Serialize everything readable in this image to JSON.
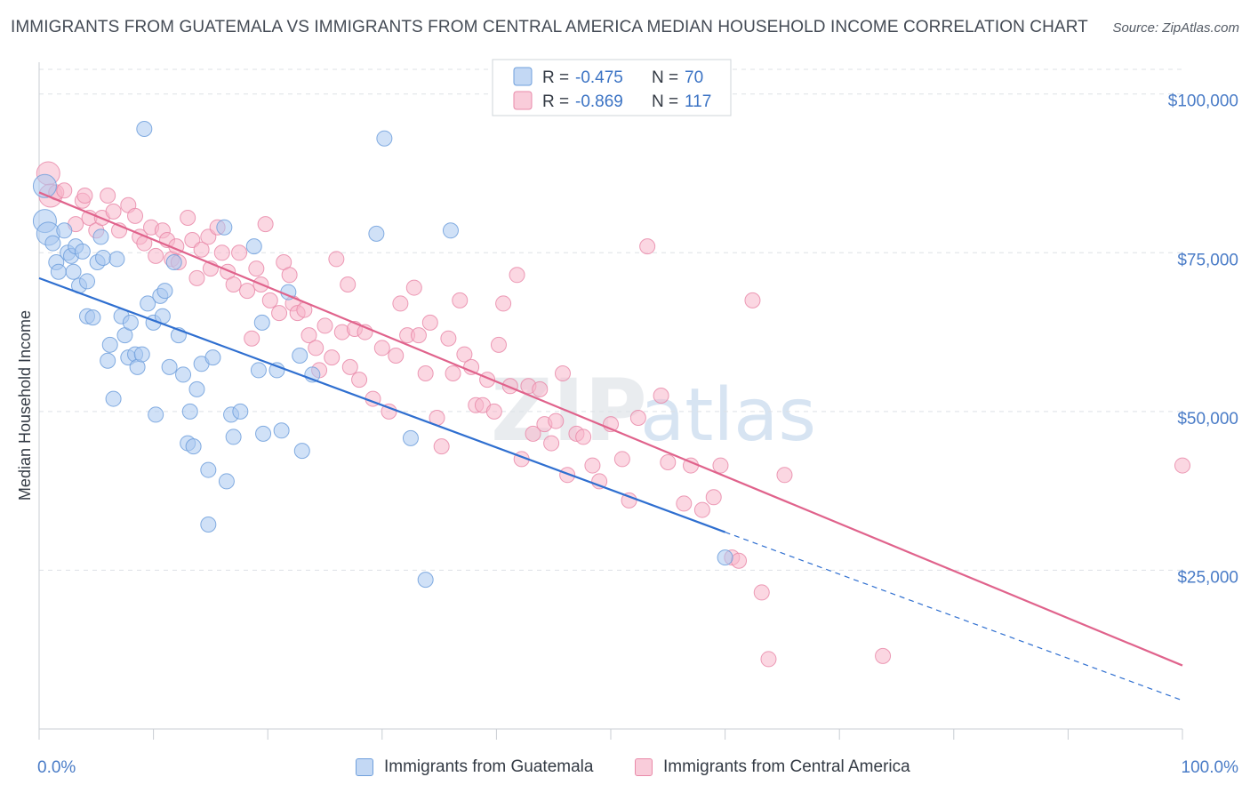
{
  "title": "IMMIGRANTS FROM GUATEMALA VS IMMIGRANTS FROM CENTRAL AMERICA MEDIAN HOUSEHOLD INCOME CORRELATION CHART",
  "source": "Source: ZipAtlas.com",
  "watermark": {
    "zip": "ZIP",
    "atlas": "atlas"
  },
  "legend": {
    "r_label": "R =",
    "n_label": "N =",
    "items": [
      {
        "r": "-0.475",
        "n": "70"
      },
      {
        "r": "-0.869",
        "n": "117"
      }
    ]
  },
  "colors": {
    "blue_fill": "#a9c8f0",
    "blue_stroke": "#6f9fdc",
    "blue_line": "#2f6fd0",
    "pink_fill": "#f7b6cb",
    "pink_stroke": "#e98aa9",
    "pink_line": "#e0638c"
  },
  "chart_data": {
    "type": "scatter",
    "xlabel": "",
    "ylabel": "Median Household Income",
    "xlim": [
      0,
      100
    ],
    "ylim": [
      0,
      105000
    ],
    "x_tick_labels": [
      "0.0%",
      "100.0%"
    ],
    "y_ticks": [
      25000,
      50000,
      75000,
      100000
    ],
    "y_tick_labels": [
      "$25,000",
      "$50,000",
      "$75,000",
      "$100,000"
    ],
    "grid": true,
    "legend_position": "top-center",
    "series": [
      {
        "name": "Immigrants from Guatemala",
        "trend": {
          "x0": 0,
          "y0": 71000,
          "x1": 60,
          "y1": 31000,
          "dash_to_x": 100,
          "dash_to_y": 4500
        },
        "points": [
          [
            0.5,
            85500
          ],
          [
            0.5,
            80000
          ],
          [
            0.8,
            78000
          ],
          [
            1.2,
            76500
          ],
          [
            1.5,
            73500
          ],
          [
            1.7,
            72000
          ],
          [
            2.2,
            78500
          ],
          [
            2.5,
            75000
          ],
          [
            2.8,
            74500
          ],
          [
            3.0,
            72000
          ],
          [
            3.2,
            76000
          ],
          [
            3.5,
            69800
          ],
          [
            3.8,
            75200
          ],
          [
            4.2,
            70500
          ],
          [
            4.2,
            65000
          ],
          [
            4.7,
            64800
          ],
          [
            5.1,
            73500
          ],
          [
            5.4,
            77500
          ],
          [
            5.6,
            74200
          ],
          [
            6.0,
            58000
          ],
          [
            6.2,
            60500
          ],
          [
            6.5,
            52000
          ],
          [
            6.8,
            74000
          ],
          [
            7.2,
            65000
          ],
          [
            7.5,
            62000
          ],
          [
            7.8,
            58500
          ],
          [
            8.0,
            64000
          ],
          [
            8.4,
            59000
          ],
          [
            8.6,
            57000
          ],
          [
            9.0,
            59000
          ],
          [
            9.2,
            94500
          ],
          [
            9.5,
            67000
          ],
          [
            10.0,
            64000
          ],
          [
            10.2,
            49500
          ],
          [
            10.6,
            68200
          ],
          [
            10.8,
            65000
          ],
          [
            11.0,
            69000
          ],
          [
            11.4,
            57000
          ],
          [
            11.8,
            73500
          ],
          [
            12.2,
            62000
          ],
          [
            12.6,
            55800
          ],
          [
            13.0,
            45000
          ],
          [
            13.2,
            50000
          ],
          [
            13.5,
            44500
          ],
          [
            13.8,
            53500
          ],
          [
            14.2,
            57500
          ],
          [
            14.8,
            40800
          ],
          [
            15.2,
            58500
          ],
          [
            16.2,
            79000
          ],
          [
            16.4,
            39000
          ],
          [
            16.8,
            49500
          ],
          [
            17.0,
            46000
          ],
          [
            17.6,
            50000
          ],
          [
            18.8,
            76000
          ],
          [
            19.2,
            56500
          ],
          [
            19.5,
            64000
          ],
          [
            19.6,
            46500
          ],
          [
            20.8,
            56500
          ],
          [
            21.2,
            47000
          ],
          [
            21.8,
            68800
          ],
          [
            22.8,
            58800
          ],
          [
            23.0,
            43800
          ],
          [
            23.9,
            55800
          ],
          [
            14.8,
            32200
          ],
          [
            29.5,
            78000
          ],
          [
            30.2,
            93000
          ],
          [
            32.5,
            45800
          ],
          [
            33.8,
            23500
          ],
          [
            36.0,
            78500
          ],
          [
            60.0,
            27000
          ]
        ]
      },
      {
        "name": "Immigrants from Central America",
        "trend": {
          "x0": 0,
          "y0": 84500,
          "x1": 100,
          "y1": 10000
        },
        "points": [
          [
            0.8,
            87500
          ],
          [
            1.0,
            84000
          ],
          [
            1.5,
            84500
          ],
          [
            2.2,
            84800
          ],
          [
            3.2,
            79500
          ],
          [
            3.8,
            83200
          ],
          [
            4.0,
            84000
          ],
          [
            4.4,
            80500
          ],
          [
            5.0,
            78500
          ],
          [
            5.5,
            80500
          ],
          [
            6.0,
            84000
          ],
          [
            6.5,
            81500
          ],
          [
            7.0,
            78500
          ],
          [
            7.8,
            82500
          ],
          [
            8.4,
            80800
          ],
          [
            8.8,
            77500
          ],
          [
            9.2,
            76500
          ],
          [
            9.8,
            79000
          ],
          [
            10.2,
            74500
          ],
          [
            10.8,
            78500
          ],
          [
            11.2,
            77000
          ],
          [
            11.6,
            74000
          ],
          [
            12.0,
            76000
          ],
          [
            12.2,
            73500
          ],
          [
            13.0,
            80500
          ],
          [
            13.4,
            77000
          ],
          [
            13.8,
            71000
          ],
          [
            14.2,
            75500
          ],
          [
            14.8,
            77500
          ],
          [
            15.0,
            72500
          ],
          [
            15.6,
            79000
          ],
          [
            16.0,
            75000
          ],
          [
            16.5,
            72000
          ],
          [
            17.0,
            70000
          ],
          [
            17.5,
            75000
          ],
          [
            18.2,
            69000
          ],
          [
            18.6,
            61500
          ],
          [
            19.0,
            72500
          ],
          [
            19.4,
            70000
          ],
          [
            19.8,
            79500
          ],
          [
            20.2,
            67500
          ],
          [
            21.0,
            65500
          ],
          [
            21.4,
            73500
          ],
          [
            21.9,
            71500
          ],
          [
            22.2,
            67000
          ],
          [
            22.6,
            65500
          ],
          [
            23.2,
            66000
          ],
          [
            23.6,
            62000
          ],
          [
            24.2,
            60000
          ],
          [
            24.5,
            56500
          ],
          [
            25.0,
            63500
          ],
          [
            25.6,
            58500
          ],
          [
            26.0,
            74000
          ],
          [
            26.5,
            62500
          ],
          [
            27.0,
            70000
          ],
          [
            27.2,
            57000
          ],
          [
            27.6,
            63000
          ],
          [
            28.0,
            55000
          ],
          [
            28.5,
            62500
          ],
          [
            29.2,
            52000
          ],
          [
            30.0,
            60000
          ],
          [
            30.6,
            50000
          ],
          [
            31.2,
            58800
          ],
          [
            31.6,
            67000
          ],
          [
            32.2,
            62000
          ],
          [
            32.8,
            69500
          ],
          [
            33.2,
            62000
          ],
          [
            33.8,
            56000
          ],
          [
            34.2,
            64000
          ],
          [
            34.8,
            49000
          ],
          [
            35.2,
            44500
          ],
          [
            35.8,
            61500
          ],
          [
            36.2,
            56000
          ],
          [
            36.8,
            67500
          ],
          [
            37.2,
            59000
          ],
          [
            37.8,
            57000
          ],
          [
            38.2,
            51000
          ],
          [
            38.8,
            51000
          ],
          [
            39.2,
            55000
          ],
          [
            39.8,
            50000
          ],
          [
            40.2,
            60500
          ],
          [
            40.6,
            67000
          ],
          [
            41.2,
            54000
          ],
          [
            41.8,
            71500
          ],
          [
            42.2,
            42500
          ],
          [
            42.8,
            54000
          ],
          [
            43.2,
            46500
          ],
          [
            43.8,
            53500
          ],
          [
            44.2,
            48000
          ],
          [
            44.8,
            45000
          ],
          [
            45.2,
            48500
          ],
          [
            45.8,
            56000
          ],
          [
            46.2,
            40000
          ],
          [
            47.0,
            46500
          ],
          [
            47.6,
            46000
          ],
          [
            48.4,
            41500
          ],
          [
            49.0,
            39000
          ],
          [
            50.0,
            48000
          ],
          [
            51.0,
            42500
          ],
          [
            51.6,
            36000
          ],
          [
            52.4,
            49000
          ],
          [
            53.2,
            76000
          ],
          [
            54.4,
            52500
          ],
          [
            55.0,
            42000
          ],
          [
            56.4,
            35500
          ],
          [
            57.0,
            41500
          ],
          [
            58.0,
            34500
          ],
          [
            59.0,
            36500
          ],
          [
            59.6,
            41500
          ],
          [
            60.6,
            27000
          ],
          [
            61.2,
            26500
          ],
          [
            62.4,
            67500
          ],
          [
            63.2,
            21500
          ],
          [
            63.8,
            11000
          ],
          [
            65.2,
            40000
          ],
          [
            73.8,
            11500
          ],
          [
            100.0,
            41500
          ]
        ]
      }
    ]
  }
}
